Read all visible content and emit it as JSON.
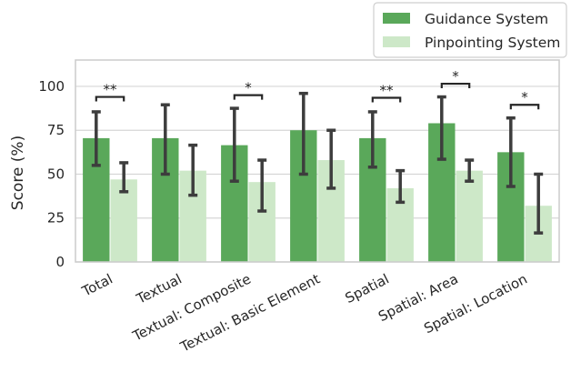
{
  "chart_data": {
    "type": "bar",
    "ylabel": "Score (%)",
    "xlabel": "",
    "ylim": [
      0,
      115
    ],
    "yticks": [
      0,
      25,
      50,
      75,
      100
    ],
    "grid": "horizontal",
    "legend_position": "top-right",
    "categories": [
      "Total",
      "Textual",
      "Textual: Composite",
      "Textual: Basic Element",
      "Spatial",
      "Spatial: Area",
      "Spatial: Location"
    ],
    "series": [
      {
        "name": "Guidance System",
        "color": "#5aa85a",
        "values": [
          70.5,
          70.5,
          66.5,
          75,
          70.5,
          79,
          62.5
        ],
        "err_low": [
          55,
          50,
          46,
          50,
          54,
          58.5,
          43
        ],
        "err_high": [
          85.5,
          89.5,
          87.5,
          96,
          85.5,
          94,
          82
        ]
      },
      {
        "name": "Pinpointing System",
        "color": "#cde8c8",
        "values": [
          47,
          52,
          45.5,
          58,
          42,
          52,
          32
        ],
        "err_low": [
          40,
          38,
          29,
          42,
          34,
          46,
          16.5
        ],
        "err_high": [
          56.5,
          66.5,
          58,
          75,
          52,
          58,
          50
        ]
      }
    ],
    "significance": [
      {
        "category_index": 0,
        "label": "**",
        "y": 94
      },
      {
        "category_index": 2,
        "label": "*",
        "y": 95
      },
      {
        "category_index": 4,
        "label": "**",
        "y": 93.5
      },
      {
        "category_index": 5,
        "label": "*",
        "y": 101.5
      },
      {
        "category_index": 6,
        "label": "*",
        "y": 89.5
      }
    ]
  }
}
